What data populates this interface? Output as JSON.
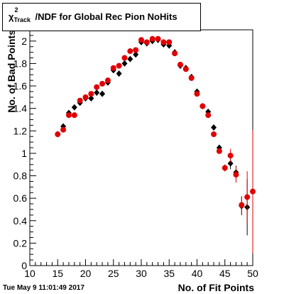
{
  "chart_data": {
    "type": "scatter",
    "title": "χ²_Track/NDF for Global Rec Pion NoHits",
    "title_parts": {
      "chi": "χ",
      "sup": "2",
      "sub": "Track",
      "rest": "/NDF for Global Rec Pion NoHits"
    },
    "xlabel": "No. of Fit Points",
    "ylabel": "No. of Bad Points",
    "xlim": [
      10,
      50
    ],
    "ylim": [
      0,
      2.1
    ],
    "x_ticks": [
      10,
      15,
      20,
      25,
      30,
      35,
      40,
      45,
      50
    ],
    "y_ticks": [
      0,
      0.2,
      0.4,
      0.6,
      0.8,
      1,
      1.2,
      1.4,
      1.6,
      1.8,
      2
    ],
    "grid": false,
    "series": [
      {
        "color": "#000000",
        "marker": "diamond",
        "x": [
          15,
          16,
          17,
          18,
          19,
          20,
          21,
          22,
          23,
          24,
          25,
          26,
          27,
          28,
          29,
          30,
          31,
          32,
          33,
          34,
          35,
          36,
          37,
          38,
          39,
          40,
          41,
          42,
          43,
          44,
          45,
          46,
          47,
          48,
          49
        ],
        "y": [
          1.17,
          1.24,
          1.36,
          1.41,
          1.45,
          1.49,
          1.49,
          1.54,
          1.53,
          1.63,
          1.74,
          1.71,
          1.8,
          1.84,
          1.88,
          1.99,
          1.98,
          2.0,
          2.01,
          1.97,
          1.96,
          1.9,
          1.78,
          1.76,
          1.68,
          1.55,
          1.42,
          1.37,
          1.23,
          1.05,
          0.87,
          0.91,
          0.83,
          0.53,
          0.52
        ],
        "err": [
          0,
          0,
          0,
          0,
          0,
          0,
          0,
          0,
          0,
          0,
          0,
          0,
          0,
          0,
          0,
          0,
          0,
          0,
          0,
          0,
          0,
          0,
          0,
          0,
          0,
          0,
          0,
          0,
          0,
          0.02,
          0.03,
          0.05,
          0.06,
          0.08,
          0.25
        ]
      },
      {
        "color": "#e00000",
        "marker": "circle",
        "x": [
          15,
          16,
          17,
          18,
          19,
          20,
          21,
          22,
          23,
          24,
          25,
          26,
          27,
          28,
          29,
          30,
          31,
          32,
          33,
          34,
          35,
          36,
          37,
          38,
          39,
          40,
          41,
          42,
          43,
          44,
          45,
          46,
          47,
          48,
          49,
          50
        ],
        "y": [
          1.17,
          1.21,
          1.34,
          1.34,
          1.47,
          1.5,
          1.53,
          1.59,
          1.62,
          1.65,
          1.76,
          1.78,
          1.85,
          1.91,
          1.92,
          2.01,
          1.99,
          2.02,
          2.02,
          1.99,
          1.99,
          1.89,
          1.79,
          1.75,
          1.67,
          1.53,
          1.42,
          1.34,
          1.17,
          1.02,
          0.87,
          0.98,
          0.81,
          0.54,
          0.61,
          0.66
        ],
        "err": [
          0,
          0,
          0,
          0,
          0,
          0,
          0,
          0,
          0,
          0,
          0,
          0,
          0,
          0,
          0,
          0,
          0,
          0,
          0,
          0,
          0,
          0,
          0,
          0,
          0,
          0,
          0,
          0,
          0,
          0.02,
          0.03,
          0.06,
          0.07,
          0.08,
          0.23,
          0.55
        ]
      }
    ]
  },
  "footer": {
    "timestamp": "Tue May  9 11:01:49 2017"
  }
}
